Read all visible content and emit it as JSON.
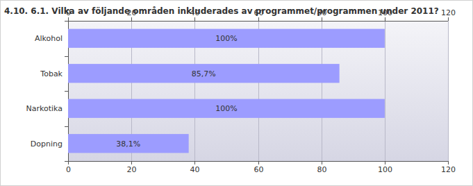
{
  "chart_data": {
    "type": "bar",
    "title": "4.10. 6.1. Vilka av följande områden inkluderades av programmet/programmen under 2011?",
    "categories": [
      "Alkohol",
      "Tobak",
      "Narkotika",
      "Dopning"
    ],
    "values": [
      100,
      85.7,
      100,
      38.1
    ],
    "value_labels": [
      "100%",
      "85,7%",
      "100%",
      "38,1%"
    ],
    "color": "#9c9cff",
    "orientation": "horizontal",
    "data_labels": true,
    "ylim": [
      0,
      120
    ],
    "yticks": [
      0,
      20,
      40,
      60,
      80,
      100,
      120
    ],
    "grid": true
  }
}
